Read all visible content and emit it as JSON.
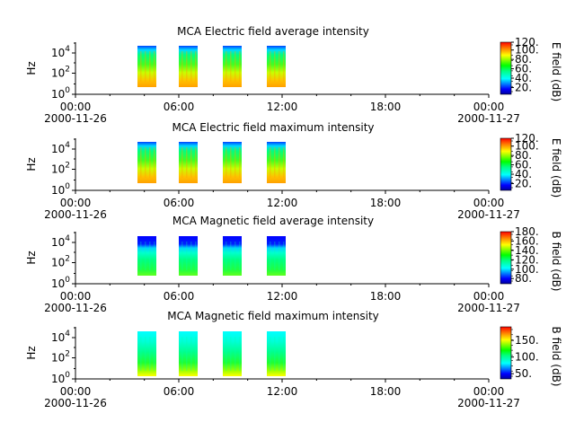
{
  "chart_data": [
    {
      "type": "heatmap",
      "title": "MCA  Electric field average intensity",
      "ylabel": "Hz",
      "colorbar_label": "E field (dB)",
      "colorbar_ticks": [
        "20.",
        "40.",
        "60.",
        "80.",
        "100.",
        "120."
      ],
      "yticks": [
        {
          "base": "10",
          "exp": "0"
        },
        {
          "base": "10",
          "exp": "2"
        },
        {
          "base": "10",
          "exp": "4"
        }
      ],
      "xticks": [
        "00:00",
        "06:00",
        "12:00",
        "18:00",
        "00:00"
      ],
      "date_labels": [
        "2000-11-26",
        "2000-11-27"
      ],
      "x": [
        "03:00-04:00",
        "06:00-07:00",
        "08:40-09:40",
        "11:20-12:20"
      ],
      "y_range_hz": [
        10,
        20000
      ],
      "values_db_range": [
        20,
        120
      ]
    },
    {
      "type": "heatmap",
      "title": "MCA  Electric field maximum intensity",
      "ylabel": "Hz",
      "colorbar_label": "E field (dB)",
      "colorbar_ticks": [
        "20.",
        "40.",
        "60.",
        "80.",
        "100.",
        "120."
      ],
      "yticks": [
        {
          "base": "10",
          "exp": "0"
        },
        {
          "base": "10",
          "exp": "2"
        },
        {
          "base": "10",
          "exp": "4"
        }
      ],
      "xticks": [
        "00:00",
        "06:00",
        "12:00",
        "18:00",
        "00:00"
      ],
      "date_labels": [
        "2000-11-26",
        "2000-11-27"
      ],
      "x": [
        "03:00-04:00",
        "06:00-07:00",
        "08:40-09:40",
        "11:20-12:20"
      ],
      "y_range_hz": [
        10,
        20000
      ],
      "values_db_range": [
        20,
        120
      ]
    },
    {
      "type": "heatmap",
      "title": "MCA  Magnetic field average intensity",
      "ylabel": "Hz",
      "colorbar_label": "B field (dB)",
      "colorbar_ticks": [
        "80.",
        "100.",
        "120.",
        "140.",
        "160.",
        "180."
      ],
      "yticks": [
        {
          "base": "10",
          "exp": "0"
        },
        {
          "base": "10",
          "exp": "2"
        },
        {
          "base": "10",
          "exp": "4"
        }
      ],
      "xticks": [
        "00:00",
        "06:00",
        "12:00",
        "18:00",
        "00:00"
      ],
      "date_labels": [
        "2000-11-26",
        "2000-11-27"
      ],
      "x": [
        "03:00-04:00",
        "06:00-07:00",
        "08:40-09:40",
        "11:20-12:20"
      ],
      "y_range_hz": [
        10,
        20000
      ],
      "values_db_range": [
        70,
        180
      ]
    },
    {
      "type": "heatmap",
      "title": "MCA  Magnetic field maximum intensity",
      "ylabel": "Hz",
      "colorbar_label": "B field (dB)",
      "colorbar_ticks": [
        "50.",
        "100.",
        "150."
      ],
      "yticks": [
        {
          "base": "10",
          "exp": "0"
        },
        {
          "base": "10",
          "exp": "2"
        },
        {
          "base": "10",
          "exp": "4"
        }
      ],
      "xticks": [
        "00:00",
        "06:00",
        "12:00",
        "18:00",
        "00:00"
      ],
      "date_labels": [
        "2000-11-26",
        "2000-11-27"
      ],
      "x": [
        "03:00-04:00",
        "06:00-07:00",
        "08:40-09:40",
        "11:20-12:20"
      ],
      "y_range_hz": [
        10,
        20000
      ],
      "values_db_range": [
        40,
        190
      ]
    }
  ],
  "colors": {
    "axis": "#000000",
    "background": "#ffffff"
  }
}
